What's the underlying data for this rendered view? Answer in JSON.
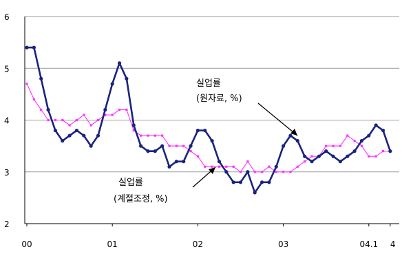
{
  "chart_data": {
    "type": "line",
    "ylim": [
      2,
      6
    ],
    "yticks": [
      2,
      3,
      4,
      5,
      6
    ],
    "x_tick_labels": [
      {
        "label": "00",
        "i": 0
      },
      {
        "label": "01",
        "i": 12
      },
      {
        "label": "02",
        "i": 24
      },
      {
        "label": "03",
        "i": 36
      },
      {
        "label": "04.1",
        "i": 48
      },
      {
        "label": "4",
        "i": 51
      }
    ],
    "grid": true,
    "colors": {
      "raw": "#1a237e",
      "adjusted": "#ff33ff",
      "grid": "#9a9a9a",
      "axis": "#000000"
    },
    "series": [
      {
        "name": "실업률 (원자료, %)",
        "key": "raw",
        "values": [
          5.4,
          5.4,
          4.8,
          4.2,
          3.8,
          3.6,
          3.7,
          3.8,
          3.7,
          3.5,
          3.7,
          4.2,
          4.7,
          5.1,
          4.8,
          3.9,
          3.5,
          3.4,
          3.4,
          3.5,
          3.1,
          3.2,
          3.2,
          3.5,
          3.8,
          3.8,
          3.6,
          3.2,
          3.0,
          2.8,
          2.8,
          3.0,
          2.6,
          2.8,
          2.8,
          3.1,
          3.5,
          3.7,
          3.6,
          3.3,
          3.2,
          3.3,
          3.4,
          3.3,
          3.2,
          3.3,
          3.4,
          3.6,
          3.7,
          3.9,
          3.8,
          3.4
        ]
      },
      {
        "name": "실업률 (계절조정, %)",
        "key": "adjusted",
        "values": [
          4.7,
          4.4,
          4.2,
          4.0,
          4.0,
          4.0,
          3.9,
          4.0,
          4.1,
          3.9,
          4.0,
          4.1,
          4.1,
          4.2,
          4.2,
          3.8,
          3.7,
          3.7,
          3.7,
          3.7,
          3.5,
          3.5,
          3.5,
          3.4,
          3.3,
          3.1,
          3.1,
          3.1,
          3.1,
          3.1,
          3.0,
          3.2,
          3.0,
          3.0,
          3.1,
          3.0,
          3.0,
          3.0,
          3.1,
          3.2,
          3.3,
          3.3,
          3.5,
          3.5,
          3.5,
          3.7,
          3.6,
          3.5,
          3.3,
          3.3,
          3.4,
          3.4
        ]
      }
    ],
    "annotations": [
      {
        "line1": "실업률",
        "line2": "(원자료, %)",
        "series": "raw"
      },
      {
        "line1": "실업률",
        "line2": "(계절조정, %)",
        "series": "adjusted"
      }
    ]
  }
}
